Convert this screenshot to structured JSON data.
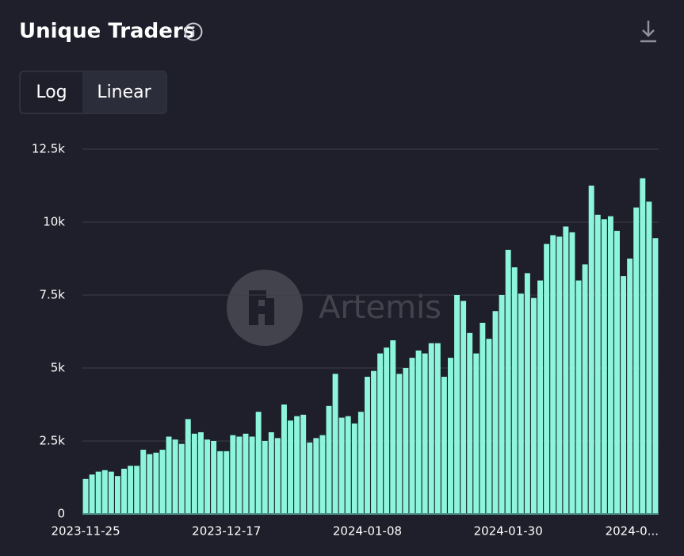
{
  "chart_data": {
    "type": "bar",
    "title": "Unique Traders",
    "controls": [
      "Log",
      "Linear"
    ],
    "selected_control": 1,
    "watermark": "Artemis",
    "log_scale": false,
    "grid": true,
    "color": "#8cf5dc",
    "categories": [
      "2023-11-25",
      null,
      null,
      null,
      null,
      null,
      null,
      null,
      null,
      null,
      null,
      null,
      null,
      null,
      null,
      null,
      null,
      null,
      null,
      null,
      null,
      null,
      "2023-12-17",
      null,
      null,
      null,
      null,
      null,
      null,
      null,
      null,
      null,
      null,
      null,
      null,
      null,
      null,
      null,
      null,
      null,
      null,
      null,
      null,
      null,
      "2024-01-08",
      null,
      null,
      null,
      null,
      null,
      null,
      null,
      null,
      null,
      null,
      null,
      null,
      null,
      null,
      null,
      null,
      null,
      null,
      null,
      null,
      null,
      "2024-01-30",
      null,
      null,
      null,
      null,
      null,
      null,
      null,
      null,
      null,
      null,
      null,
      null,
      null,
      null,
      null,
      null,
      null,
      null,
      null,
      null,
      null,
      "2024-0...",
      null
    ],
    "values": [
      1200,
      1350,
      1450,
      1500,
      1450,
      1300,
      1550,
      1650,
      1650,
      2200,
      2050,
      2100,
      2200,
      2650,
      2550,
      2400,
      3250,
      2750,
      2800,
      2550,
      2500,
      2150,
      2150,
      2700,
      2650,
      2750,
      2650,
      3500,
      2500,
      2800,
      2600,
      3750,
      3200,
      3350,
      3400,
      2450,
      2600,
      2700,
      3700,
      4800,
      3300,
      3350,
      3100,
      3500,
      4700,
      4900,
      5500,
      5700,
      5950,
      4800,
      5000,
      5350,
      5600,
      5500,
      5850,
      5850,
      4700,
      5350,
      7500,
      7300,
      6200,
      5500,
      6550,
      6000,
      6950,
      7500,
      9050,
      8450,
      7550,
      8250,
      7400,
      8000,
      9250,
      9550,
      9500,
      9850,
      9650,
      8000,
      8550,
      11250,
      10250,
      10100,
      10200,
      9700,
      8150,
      8750,
      10500,
      11500,
      10700,
      9450
    ],
    "ylim": [
      0,
      12500
    ],
    "yticks": [
      0,
      {
        "value": 2500,
        "label": "2.5k"
      },
      {
        "value": 5000,
        "label": "5k"
      },
      {
        "value": 7500,
        "label": "7.5k"
      },
      {
        "value": 10000,
        "label": "10k"
      },
      {
        "value": 12500,
        "label": "12.5k"
      }
    ]
  }
}
